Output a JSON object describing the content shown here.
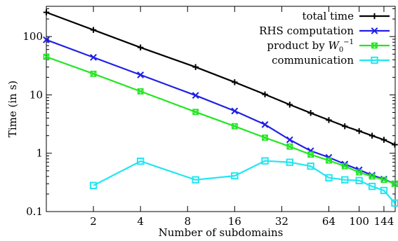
{
  "chart_data": {
    "type": "line",
    "xlabel": "Number of subdomains",
    "ylabel": "Time (in s)",
    "x_scale": "log",
    "y_scale": "log",
    "xlim": [
      1,
      170
    ],
    "ylim": [
      0.1,
      330
    ],
    "x_ticks": [
      2,
      4,
      8,
      16,
      32,
      64,
      100,
      144
    ],
    "x_tick_labels": [
      "2",
      "4",
      "8",
      "16",
      "32",
      "64",
      "100",
      "144"
    ],
    "y_ticks": [
      0.1,
      1,
      10,
      100
    ],
    "y_tick_labels": [
      "0.1",
      "1",
      "10",
      "100"
    ],
    "grid": false,
    "legend_position": "top-right",
    "series": [
      {
        "name": "total time",
        "color": "#000000",
        "marker": "plus",
        "x": [
          1,
          2,
          4,
          9,
          16,
          25,
          36,
          49,
          64,
          81,
          100,
          121,
          144,
          169
        ],
        "y": [
          260,
          130,
          65,
          30,
          16.5,
          10.2,
          6.8,
          4.9,
          3.7,
          2.9,
          2.4,
          2.0,
          1.7,
          1.4
        ]
      },
      {
        "name": "RHS computation",
        "color": "#1f1fe6",
        "marker": "cross",
        "x": [
          1,
          2,
          4,
          9,
          16,
          25,
          36,
          49,
          64,
          81,
          100,
          121,
          144,
          169
        ],
        "y": [
          88,
          44,
          22,
          9.8,
          5.3,
          3.1,
          1.7,
          1.1,
          0.85,
          0.65,
          0.52,
          0.42,
          0.36,
          0.3
        ]
      },
      {
        "name_prefix": "product by ",
        "name_math_base": "W",
        "name_math_sub": "0",
        "name_math_sup": "−1",
        "color": "#22e622",
        "marker": "boxed-x",
        "x": [
          1,
          2,
          4,
          9,
          16,
          25,
          36,
          49,
          64,
          81,
          100,
          121,
          144,
          169
        ],
        "y": [
          45,
          23,
          11.5,
          5.1,
          2.9,
          1.85,
          1.3,
          0.95,
          0.75,
          0.6,
          0.47,
          0.4,
          0.35,
          0.3
        ]
      },
      {
        "name": "communication",
        "color": "#22e6f0",
        "marker": "square",
        "x": [
          2,
          4,
          9,
          16,
          25,
          36,
          49,
          64,
          81,
          100,
          121,
          144,
          169
        ],
        "y": [
          0.28,
          0.73,
          0.35,
          0.41,
          0.74,
          0.7,
          0.6,
          0.38,
          0.35,
          0.34,
          0.27,
          0.23,
          0.14
        ]
      }
    ]
  }
}
